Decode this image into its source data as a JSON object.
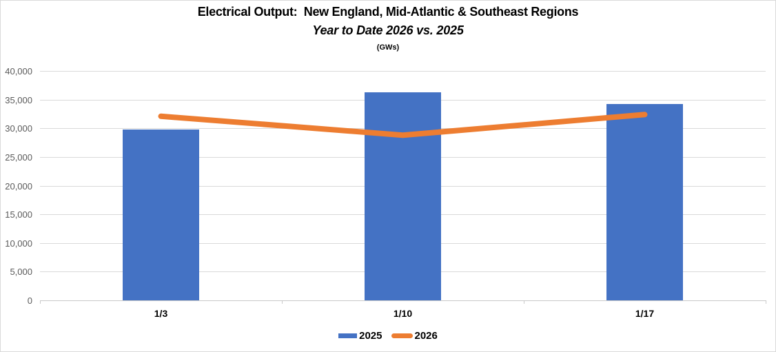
{
  "chart": {
    "title": "Electrical Output:  New England, Mid-Atlantic & Southeast Regions",
    "subtitle": "Year to Date 2026 vs. 2025",
    "units_label": "(GWs)"
  },
  "chart_data": {
    "type": "bar",
    "combo_types": [
      "bar",
      "line"
    ],
    "title": "Electrical Output:  New England, Mid-Atlantic & Southeast Regions",
    "subtitle": "Year to Date 2026 vs. 2025",
    "units": "GWs",
    "categories": [
      "1/3",
      "1/10",
      "1/17"
    ],
    "series": [
      {
        "name": "2025",
        "type": "bar",
        "color": "#4472C4",
        "values": [
          29800,
          36300,
          34200
        ]
      },
      {
        "name": "2026",
        "type": "line",
        "color": "#ED7D31",
        "values": [
          32100,
          28800,
          32400
        ]
      }
    ],
    "xlabel": "",
    "ylabel": "",
    "ylim": [
      0,
      40000
    ],
    "ytick_step": 5000,
    "ytick_labels": [
      "0",
      "5,000",
      "10,000",
      "15,000",
      "20,000",
      "25,000",
      "30,000",
      "35,000",
      "40,000"
    ],
    "grid": true,
    "legend_position": "bottom-center"
  },
  "colors": {
    "bar_2025": "#4472C4",
    "line_2026": "#ED7D31",
    "gridline": "#D9D9D9",
    "axis_label": "#595959",
    "category_label": "#000000",
    "frame_border": "#D9D9D9",
    "background": "#FFFFFF"
  }
}
